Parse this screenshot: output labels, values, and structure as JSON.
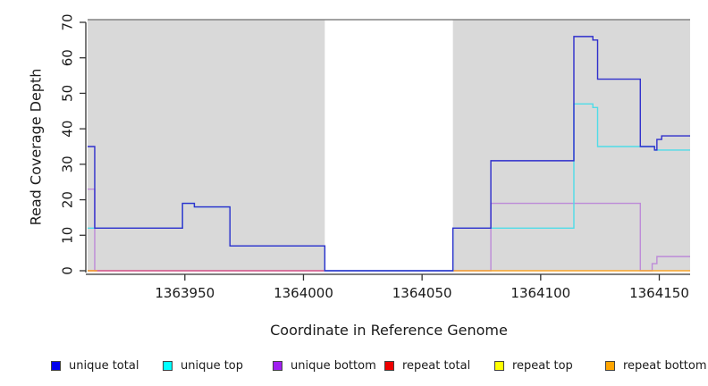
{
  "chart_data": {
    "type": "line",
    "subtype": "step-coverage",
    "title": "",
    "xlabel": "Coordinate in Reference Genome",
    "ylabel": "Read Coverage Depth",
    "xlim": [
      1363909,
      1364163
    ],
    "ylim": [
      0,
      71
    ],
    "x_ticks": [
      1363950,
      1364000,
      1364050,
      1364100,
      1364150
    ],
    "y_ticks": [
      0,
      10,
      20,
      30,
      40,
      50,
      60,
      70
    ],
    "grid": false,
    "background_regions": [
      {
        "name": "covered-region-left",
        "x0": 1363909,
        "x1": 1364009,
        "color": "#d9d9d9"
      },
      {
        "name": "covered-region-right",
        "x0": 1364063,
        "x1": 1364163,
        "color": "#d9d9d9"
      }
    ],
    "region_top_border_color": "#848484",
    "axis_color": "#333333",
    "series": [
      {
        "name": "repeat top",
        "color": "#f2e33a",
        "width": 1.4,
        "segments": [
          [
            [
              1363909,
              0
            ],
            [
              1363913,
              0
            ]
          ]
        ]
      },
      {
        "name": "unique bottom",
        "color": "#bd8ad8",
        "width": 1.4,
        "segments": [
          [
            [
              1363909,
              23
            ],
            [
              1363912,
              0
            ],
            [
              1364079,
              19
            ],
            [
              1364142,
              0
            ],
            [
              1364147,
              2
            ],
            [
              1364149,
              4
            ],
            [
              1364163,
              4
            ]
          ]
        ]
      },
      {
        "name": "repeat total",
        "color": "#d85c86",
        "width": 1.4,
        "segments": [
          [
            [
              1363909,
              0
            ],
            [
              1364009,
              0
            ]
          ]
        ]
      },
      {
        "name": "repeat bottom",
        "color": "#f7a329",
        "width": 1.4,
        "segments": [
          [
            [
              1363909,
              0
            ],
            [
              1363913,
              0
            ]
          ],
          [
            [
              1364063,
              0
            ],
            [
              1364163,
              0
            ]
          ]
        ]
      },
      {
        "name": "unique top",
        "color": "#4fdce8",
        "width": 1.4,
        "segments": [
          [
            [
              1363909,
              12
            ],
            [
              1363949,
              19
            ],
            [
              1363954,
              18
            ],
            [
              1363969,
              7
            ],
            [
              1364009,
              0
            ],
            [
              1364063,
              12
            ],
            [
              1364114,
              47
            ],
            [
              1364122,
              46
            ],
            [
              1364124,
              35
            ],
            [
              1364148,
              34
            ],
            [
              1364163,
              34
            ]
          ]
        ]
      },
      {
        "name": "unique total",
        "color": "#2e2ecc",
        "width": 1.4,
        "segments": [
          [
            [
              1363909,
              35
            ],
            [
              1363912,
              12
            ],
            [
              1363949,
              19
            ],
            [
              1363954,
              18
            ],
            [
              1363969,
              7
            ],
            [
              1364009,
              0
            ],
            [
              1364063,
              12
            ],
            [
              1364079,
              31
            ],
            [
              1364114,
              66
            ],
            [
              1364122,
              65
            ],
            [
              1364124,
              54
            ],
            [
              1364142,
              35
            ],
            [
              1364148,
              34
            ],
            [
              1364149,
              37
            ],
            [
              1364151,
              38
            ],
            [
              1364163,
              38
            ]
          ]
        ]
      }
    ],
    "legend_position": "bottom",
    "legend": [
      {
        "label": "unique total",
        "color": "#0000ee"
      },
      {
        "label": "unique top",
        "color": "#00ffff"
      },
      {
        "label": "unique bottom",
        "color": "#a020f0"
      },
      {
        "label": "repeat total",
        "color": "#ee0000"
      },
      {
        "label": "repeat top",
        "color": "#ffff00"
      },
      {
        "label": "repeat bottom",
        "color": "#ffa500"
      }
    ]
  },
  "labels": {
    "x_axis": "Coordinate in Reference Genome",
    "y_axis": "Read Coverage Depth"
  }
}
